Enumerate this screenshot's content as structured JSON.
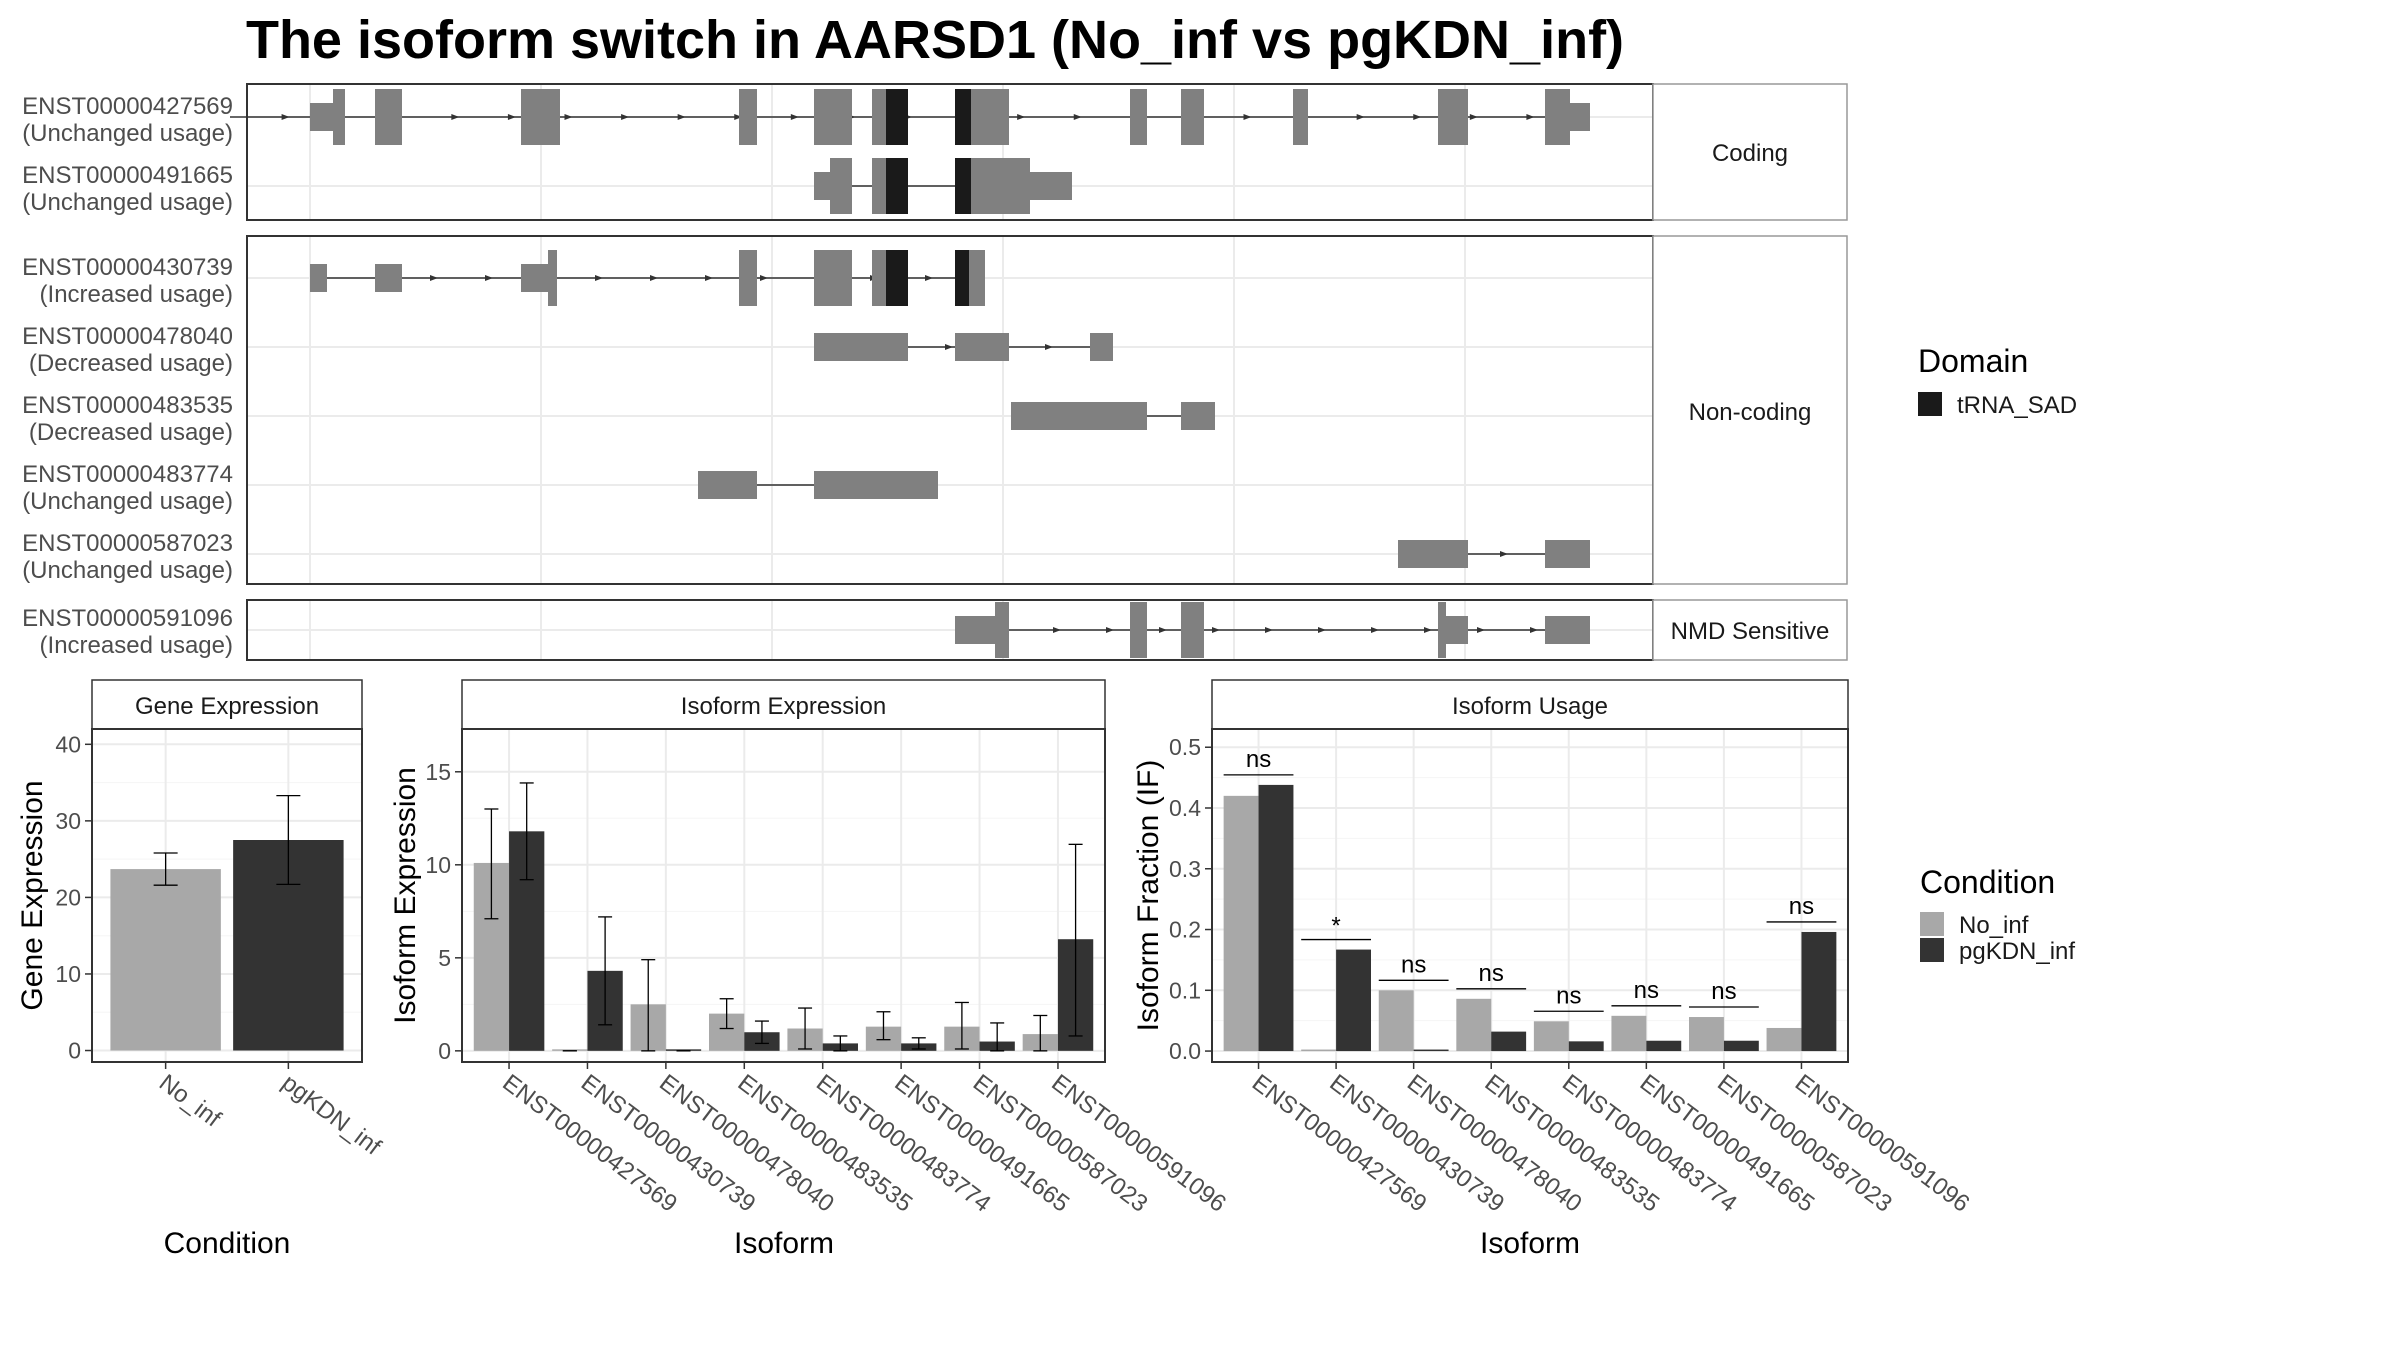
{
  "title": "The isoform switch in AARSD1 (No_inf vs pgKDN_inf)",
  "structure_panel": {
    "groups": [
      {
        "label": "Coding",
        "isoforms": [
          {
            "id": "ENST00000427569",
            "usage": "(Unchanged usage)"
          },
          {
            "id": "ENST00000491665",
            "usage": "(Unchanged usage)"
          }
        ]
      },
      {
        "label": "Non-coding",
        "isoforms": [
          {
            "id": "ENST00000430739",
            "usage": "(Increased usage)"
          },
          {
            "id": "ENST00000478040",
            "usage": "(Decreased usage)"
          },
          {
            "id": "ENST00000483535",
            "usage": "(Decreased usage)"
          },
          {
            "id": "ENST00000483774",
            "usage": "(Unchanged usage)"
          },
          {
            "id": "ENST00000587023",
            "usage": "(Unchanged usage)"
          }
        ]
      },
      {
        "label": "NMD Sensitive",
        "isoforms": [
          {
            "id": "ENST00000591096",
            "usage": "(Increased usage)"
          }
        ]
      }
    ]
  },
  "legend_domain": {
    "title": "Domain",
    "items": [
      {
        "label": "tRNA_SAD",
        "color": "#1a1a1a"
      }
    ]
  },
  "legend_condition": {
    "title": "Condition",
    "items": [
      {
        "label": "No_inf",
        "color": "#a8a8a8"
      },
      {
        "label": "pgKDN_inf",
        "color": "#333333"
      }
    ]
  },
  "chart_data": [
    {
      "type": "bar",
      "title": "Gene Expression",
      "xlabel": "Condition",
      "ylabel": "Gene Expression",
      "categories": [
        "No_inf",
        "pgKDN_inf"
      ],
      "values": [
        23.7,
        27.5
      ],
      "error_low": [
        21.6,
        21.7
      ],
      "error_high": [
        25.8,
        33.3
      ],
      "ylim": [
        -1.5,
        42
      ],
      "yticks": [
        0,
        10,
        20,
        30,
        40
      ],
      "grid": true
    },
    {
      "type": "bar",
      "title": "Isoform Expression",
      "xlabel": "Isoform",
      "ylabel": "Isoform Expression",
      "categories": [
        "ENST00000427569",
        "ENST00000430739",
        "ENST00000478040",
        "ENST00000483535",
        "ENST00000483774",
        "ENST00000491665",
        "ENST00000587023",
        "ENST00000591096"
      ],
      "series": [
        {
          "name": "No_inf",
          "values": [
            10.1,
            0.0,
            2.5,
            2.0,
            1.2,
            1.3,
            1.3,
            0.9
          ],
          "error_low": [
            7.1,
            0.0,
            0.0,
            1.2,
            0.1,
            0.6,
            0.1,
            0.0
          ],
          "error_high": [
            13.0,
            0.0,
            4.9,
            2.8,
            2.3,
            2.1,
            2.6,
            1.9
          ]
        },
        {
          "name": "pgKDN_inf",
          "values": [
            11.8,
            4.3,
            0.0,
            1.0,
            0.4,
            0.4,
            0.5,
            6.0
          ],
          "error_low": [
            9.2,
            1.4,
            0.0,
            0.4,
            0.0,
            0.1,
            0.0,
            0.8
          ],
          "error_high": [
            14.4,
            7.2,
            0.0,
            1.6,
            0.8,
            0.7,
            1.5,
            11.1
          ]
        }
      ],
      "ylim": [
        -0.6,
        17.3
      ],
      "yticks": [
        0,
        5,
        10,
        15
      ],
      "grid": true
    },
    {
      "type": "bar",
      "title": "Isoform Usage",
      "xlabel": "Isoform",
      "ylabel": "Isoform Fraction (IF)",
      "categories": [
        "ENST00000427569",
        "ENST00000430739",
        "ENST00000478040",
        "ENST00000483535",
        "ENST00000483774",
        "ENST00000491665",
        "ENST00000587023",
        "ENST00000591096"
      ],
      "series": [
        {
          "name": "No_inf",
          "values": [
            0.42,
            0.0,
            0.1,
            0.086,
            0.049,
            0.058,
            0.056,
            0.038
          ]
        },
        {
          "name": "pgKDN_inf",
          "values": [
            0.438,
            0.167,
            0.0,
            0.032,
            0.016,
            0.017,
            0.017,
            0.196
          ]
        }
      ],
      "significance": [
        "ns",
        "*",
        "ns",
        "ns",
        "ns",
        "ns",
        "ns",
        "ns"
      ],
      "ylim": [
        -0.018,
        0.53
      ],
      "yticks": [
        0.0,
        0.1,
        0.2,
        0.3,
        0.4,
        0.5
      ],
      "grid": true
    }
  ]
}
